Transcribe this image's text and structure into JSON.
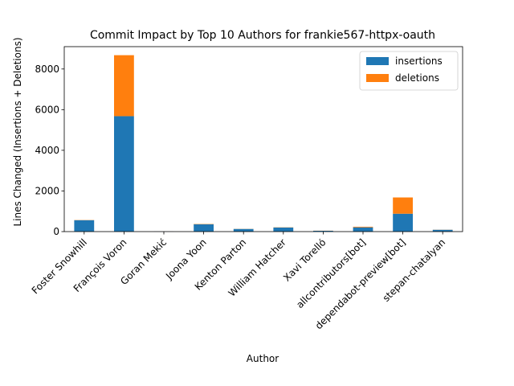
{
  "chart_data": {
    "type": "bar",
    "stacked": true,
    "title": "Commit Impact by Top 10 Authors for frankie567-httpx-oauth",
    "xlabel": "Author",
    "ylabel": "Lines Changed (Insertions + Deletions)",
    "ylim": [
      0,
      9100
    ],
    "yticks": [
      0,
      2000,
      4000,
      6000,
      8000
    ],
    "legend_position": "top-right",
    "grid": false,
    "categories": [
      "Foster Snowhill",
      "François Voron",
      "Goran Mekić",
      "Joona Yoon",
      "Kenton Parton",
      "William Hatcher",
      "Xavi Torelló",
      "allcontributors[bot]",
      "dependabot-preview[bot]",
      "stepan-chatalyan"
    ],
    "series": [
      {
        "name": "insertions",
        "color": "#1f77b4",
        "values": [
          560,
          5680,
          5,
          360,
          130,
          200,
          40,
          210,
          880,
          90
        ]
      },
      {
        "name": "deletions",
        "color": "#ff7f0e",
        "values": [
          10,
          3000,
          2,
          15,
          5,
          10,
          5,
          30,
          800,
          5
        ]
      }
    ]
  }
}
